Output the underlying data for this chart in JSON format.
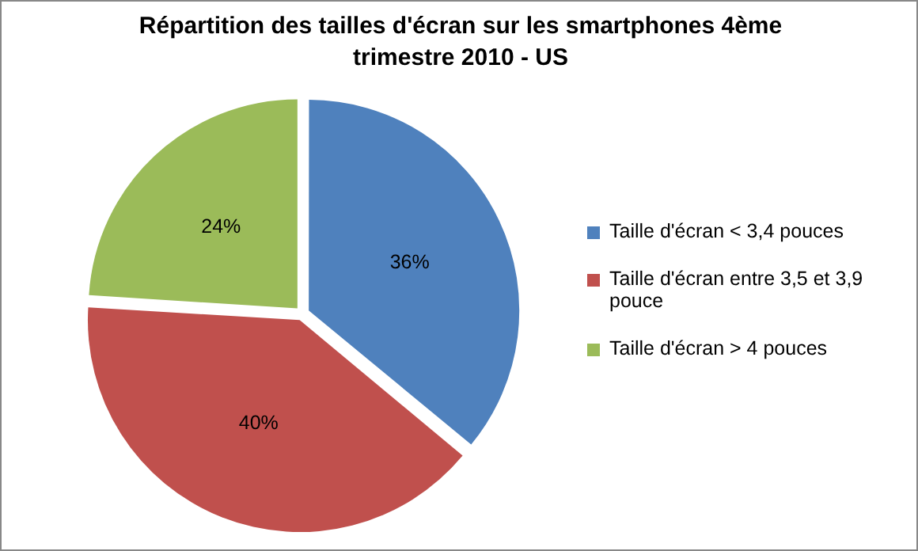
{
  "chart_data": {
    "type": "pie",
    "title": "Répartition des tailles d'écran sur les smartphones 4ème trimestre 2010 - US",
    "categories": [
      "Taille d'écran < 3,4 pouces",
      "Taille d'écran entre 3,5 et 3,9 pouce",
      "Taille d'écran > 4 pouces"
    ],
    "values": [
      36,
      40,
      24
    ],
    "colors": [
      "#4f81bd",
      "#c0504d",
      "#9bbb59"
    ],
    "value_labels": [
      "36%",
      "40%",
      "24%"
    ],
    "legend": "right"
  }
}
